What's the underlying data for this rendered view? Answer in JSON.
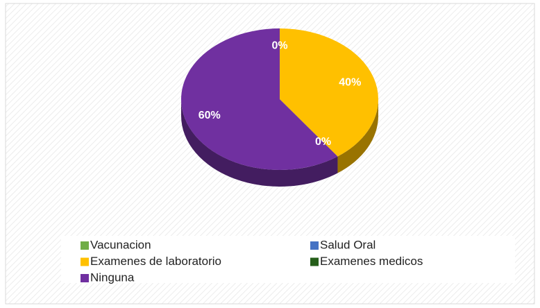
{
  "chart_data": {
    "type": "pie",
    "categories": [
      "Vacunacion",
      "Salud Oral",
      "Examenes de laboratorio",
      "Examenes medicos",
      "Ninguna"
    ],
    "values": [
      0,
      0,
      40,
      0,
      60
    ],
    "value_labels": [
      "0%",
      null,
      "40%",
      "0%",
      "60%"
    ],
    "colors": [
      "#70ad47",
      "#4472c4",
      "#ffc000",
      "#255e1a",
      "#7030a0"
    ],
    "three_d": true
  }
}
